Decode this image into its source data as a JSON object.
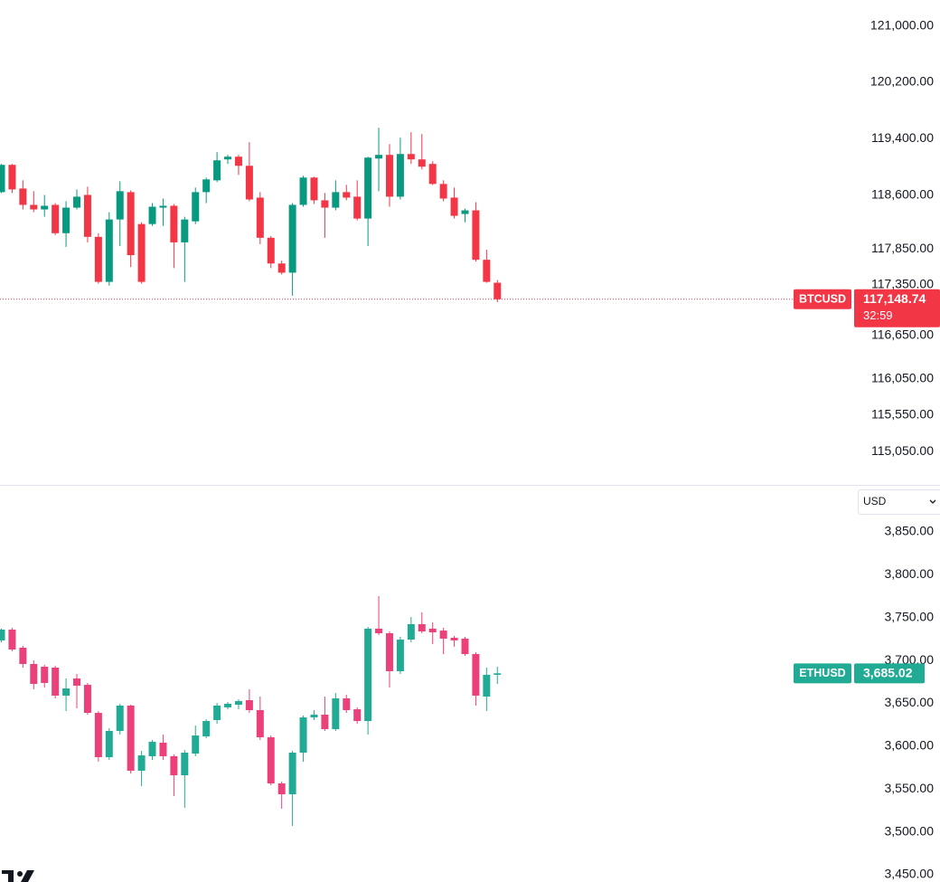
{
  "chart_data": [
    {
      "type": "candlestick",
      "log_scale": true,
      "price_line": true,
      "series": [
        {
          "name": "BTCUSD",
          "up_color": "#089981",
          "down_color": "#f23645",
          "open": [
            118645,
            119029,
            118696,
            118466,
            118402,
            118466,
            118069,
            118427,
            118606,
            118018,
            117390,
            118261,
            118645,
            118197,
            118197,
            118427,
            118453,
            117941,
            118235,
            118645,
            118811,
            119106,
            119144,
            119016,
            118568,
            118005,
            117646,
            117518,
            118466,
            118850,
            118530,
            118427,
            118645,
            118581,
            118274,
            119118,
            119170,
            118581,
            119182,
            119106,
            119042,
            118760,
            118568,
            118338,
            118389,
            117698,
            117378
          ],
          "high": [
            119042,
            119042,
            118811,
            118658,
            118606,
            118491,
            118517,
            118683,
            118722,
            118069,
            118363,
            118798,
            118670,
            118222,
            118491,
            118555,
            118478,
            118299,
            118709,
            118850,
            119208,
            119170,
            119170,
            119349,
            118645,
            118030,
            117685,
            118491,
            118875,
            118862,
            118632,
            118811,
            118747,
            118811,
            119144,
            119554,
            119323,
            119413,
            119490,
            119464,
            119080,
            118811,
            118709,
            118414,
            118504,
            117838,
            117416
          ],
          "low": [
            118632,
            118632,
            118402,
            118363,
            118299,
            118043,
            117877,
            118402,
            117941,
            117365,
            117339,
            117890,
            117595,
            117365,
            118171,
            118171,
            117582,
            117390,
            118197,
            118491,
            118786,
            119042,
            118888,
            118517,
            117915,
            117582,
            117493,
            117198,
            118440,
            118478,
            118005,
            118389,
            118530,
            118248,
            117890,
            118658,
            118440,
            118542,
            119042,
            118965,
            118747,
            118517,
            118274,
            118222,
            117672,
            117378,
            117109
          ],
          "close": [
            119029,
            118683,
            118466,
            118402,
            118453,
            118069,
            118427,
            118581,
            118018,
            117390,
            118261,
            118658,
            117762,
            117390,
            118440,
            118453,
            117941,
            118261,
            118645,
            118824,
            119093,
            119144,
            119016,
            118542,
            118005,
            117646,
            117518,
            118466,
            118850,
            118530,
            118427,
            118645,
            118568,
            118274,
            119131,
            119170,
            118581,
            119182,
            119106,
            119003,
            118760,
            118555,
            118312,
            118389,
            117698,
            117390,
            117148.74
          ],
          "last_label": "117,148.74",
          "countdown": "32:59"
        }
      ],
      "ylim": [
        114600,
        121377
      ],
      "yticks": [
        {
          "value": 121000,
          "label": "121,000.00"
        },
        {
          "value": 120200,
          "label": "120,200.00"
        },
        {
          "value": 119400,
          "label": "119,400.00"
        },
        {
          "value": 118600,
          "label": "118,600.00"
        },
        {
          "value": 117850,
          "label": "117,850.00"
        },
        {
          "value": 117350,
          "label": "117,350.00"
        },
        {
          "value": 116650,
          "label": "116,650.00"
        },
        {
          "value": 116050,
          "label": "116,050.00"
        },
        {
          "value": 115550,
          "label": "115,550.00"
        },
        {
          "value": 115050,
          "label": "115,050.00"
        }
      ]
    },
    {
      "type": "candlestick",
      "log_scale": false,
      "price_line": false,
      "series": [
        {
          "name": "ETHUSD",
          "up_color": "#22ab94",
          "down_color": "#ec407a",
          "open": [
            3723.4,
            3736.0,
            3714.9,
            3695.9,
            3692.7,
            3691.7,
            3659.0,
            3679.0,
            3671.6,
            3638.9,
            3587.2,
            3617.8,
            3647.4,
            3571.4,
            3588.3,
            3604.1,
            3588.3,
            3566.1,
            3591.4,
            3611.5,
            3630.5,
            3645.3,
            3648.4,
            3653.7,
            3642.1,
            3610.4,
            3556.6,
            3543.9,
            3592.5,
            3633.6,
            3636.8,
            3619.9,
            3655.8,
            3643.1,
            3629.4,
            3737.1,
            3731.8,
            3687.5,
            3724.4,
            3742.4,
            3737.1,
            3734.9,
            3726.5,
            3725.5,
            3707.5,
            3657.9,
            3683.3
          ],
          "high": [
            3737.1,
            3738.1,
            3717.0,
            3700.1,
            3694.9,
            3693.8,
            3679.0,
            3684.3,
            3673.8,
            3641.0,
            3621.0,
            3649.5,
            3648.4,
            3594.6,
            3607.2,
            3613.6,
            3590.4,
            3595.6,
            3624.1,
            3631.5,
            3650.5,
            3651.6,
            3654.8,
            3666.4,
            3657.9,
            3612.5,
            3558.7,
            3594.6,
            3635.8,
            3642.1,
            3657.9,
            3662.1,
            3660.0,
            3645.3,
            3739.2,
            3775.1,
            3733.9,
            3727.6,
            3750.8,
            3756.1,
            3744.5,
            3738.1,
            3728.6,
            3727.6,
            3709.6,
            3691.7,
            3692.7
          ],
          "low": [
            3721.2,
            3710.7,
            3691.7,
            3666.4,
            3668.5,
            3655.8,
            3641.0,
            3644.2,
            3636.8,
            3581.9,
            3584.0,
            3613.6,
            3568.2,
            3553.4,
            3584.0,
            3584.0,
            3541.8,
            3528.1,
            3588.3,
            3609.3,
            3626.2,
            3643.1,
            3643.1,
            3638.9,
            3607.2,
            3554.5,
            3527.0,
            3507.0,
            3581.9,
            3630.5,
            3617.8,
            3617.8,
            3638.9,
            3626.2,
            3613.6,
            3729.7,
            3668.5,
            3684.3,
            3721.2,
            3731.8,
            3719.1,
            3707.5,
            3716.0,
            3705.4,
            3647.4,
            3641.0,
            3672.7
          ],
          "close": [
            3736.0,
            3712.8,
            3695.9,
            3672.7,
            3673.8,
            3659.0,
            3667.4,
            3670.6,
            3638.9,
            3587.2,
            3617.8,
            3647.4,
            3571.4,
            3589.3,
            3605.1,
            3588.3,
            3566.1,
            3592.5,
            3612.5,
            3629.4,
            3647.4,
            3649.5,
            3652.6,
            3642.1,
            3610.4,
            3556.6,
            3543.9,
            3592.5,
            3633.6,
            3636.8,
            3619.9,
            3655.8,
            3642.1,
            3629.4,
            3737.1,
            3731.8,
            3687.5,
            3724.4,
            3742.4,
            3733.9,
            3732.8,
            3725.5,
            3723.4,
            3707.5,
            3659.0,
            3683.3,
            3685.02
          ],
          "last_label": "3,685.02"
        }
      ],
      "ylim": [
        3441.6,
        3903.8
      ],
      "yticks": [
        {
          "value": 3850,
          "label": "3,850.00"
        },
        {
          "value": 3800,
          "label": "3,800.00"
        },
        {
          "value": 3750,
          "label": "3,750.00"
        },
        {
          "value": 3700,
          "label": "3,700.00"
        },
        {
          "value": 3650,
          "label": "3,650.00"
        },
        {
          "value": 3600,
          "label": "3,600.00"
        },
        {
          "value": 3550,
          "label": "3,550.00"
        },
        {
          "value": 3500,
          "label": "3,500.00"
        },
        {
          "value": 3450,
          "label": "3,450.00"
        }
      ]
    }
  ],
  "currency_selector": "USD"
}
